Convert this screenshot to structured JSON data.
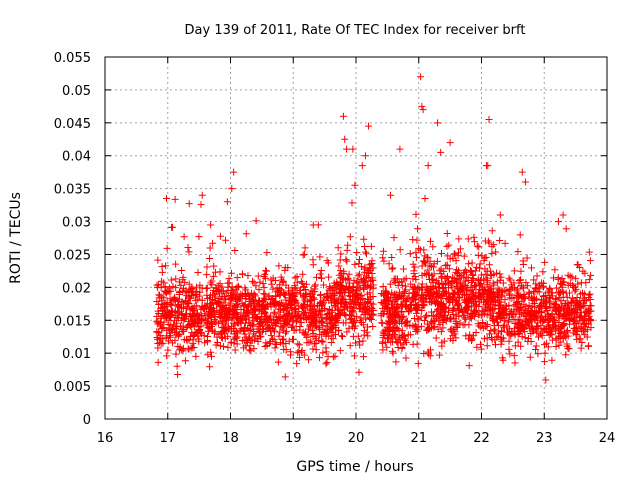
{
  "chart_data": {
    "type": "scatter",
    "title": "Day 139 of 2011, Rate Of TEC Index for receiver brft",
    "xlabel": "GPS time / hours",
    "ylabel": "ROTI / TECUs",
    "xlim": [
      16,
      24
    ],
    "ylim": [
      0,
      0.055
    ],
    "x_ticks": [
      16,
      17,
      18,
      19,
      20,
      21,
      22,
      23,
      24
    ],
    "x_tick_labels": [
      "16",
      "17",
      "18",
      "19",
      "20",
      "21",
      "22",
      "23",
      "24"
    ],
    "y_ticks": [
      0,
      0.005,
      0.01,
      0.015,
      0.02,
      0.025,
      0.03,
      0.035,
      0.04,
      0.045,
      0.05,
      0.055
    ],
    "y_tick_labels": [
      "0",
      "0.005",
      "0.01",
      "0.015",
      "0.02",
      "0.025",
      "0.03",
      "0.035",
      "0.04",
      "0.045",
      "0.05",
      "0.055"
    ],
    "grid": true,
    "marker": "+",
    "color": "#ff0000",
    "point_count": 3000,
    "gap": [
      20.28,
      20.4
    ],
    "outliers": [
      {
        "x": 19.8,
        "y": 0.046
      },
      {
        "x": 19.82,
        "y": 0.0425
      },
      {
        "x": 19.85,
        "y": 0.041
      },
      {
        "x": 20.2,
        "y": 0.0445
      },
      {
        "x": 20.15,
        "y": 0.04
      },
      {
        "x": 20.1,
        "y": 0.0385
      },
      {
        "x": 21.03,
        "y": 0.052
      },
      {
        "x": 21.05,
        "y": 0.0475
      },
      {
        "x": 21.07,
        "y": 0.047
      },
      {
        "x": 21.3,
        "y": 0.045
      },
      {
        "x": 21.35,
        "y": 0.0405
      },
      {
        "x": 20.7,
        "y": 0.041
      },
      {
        "x": 22.12,
        "y": 0.0455
      },
      {
        "x": 22.08,
        "y": 0.0385
      },
      {
        "x": 22.1,
        "y": 0.0385
      },
      {
        "x": 21.5,
        "y": 0.042
      },
      {
        "x": 21.15,
        "y": 0.0385
      },
      {
        "x": 22.65,
        "y": 0.0375
      },
      {
        "x": 22.7,
        "y": 0.036
      },
      {
        "x": 16.98,
        "y": 0.0335
      },
      {
        "x": 17.55,
        "y": 0.034
      },
      {
        "x": 18.05,
        "y": 0.0375
      },
      {
        "x": 18.02,
        "y": 0.035
      },
      {
        "x": 17.95,
        "y": 0.033
      },
      {
        "x": 19.4,
        "y": 0.0295
      },
      {
        "x": 20.55,
        "y": 0.034
      },
      {
        "x": 23.3,
        "y": 0.031
      },
      {
        "x": 19.95,
        "y": 0.041
      },
      {
        "x": 21.1,
        "y": 0.0335
      },
      {
        "x": 22.3,
        "y": 0.031
      }
    ]
  }
}
